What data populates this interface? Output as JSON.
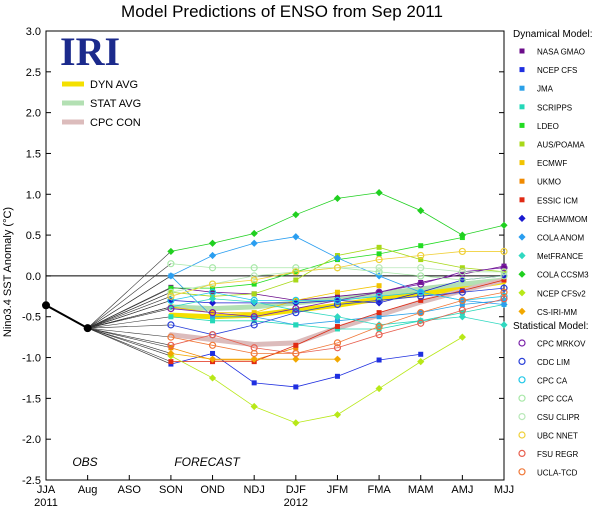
{
  "chart_data": {
    "type": "line",
    "title": "Model Predictions of ENSO from Sep 2011",
    "ylabel": "Nino3.4 SST Anomaly (°C)",
    "xlabel": "",
    "logo": "IRI",
    "categories": [
      "JJA",
      "Aug",
      "ASO",
      "SON",
      "OND",
      "NDJ",
      "DJF",
      "JFM",
      "FMA",
      "MAM",
      "AMJ",
      "MJJ"
    ],
    "year_labels": [
      {
        "at": "JJA",
        "text": "2011"
      },
      {
        "at": "DJF",
        "text": "2012"
      }
    ],
    "ylim": [
      -2.5,
      3.0
    ],
    "yticks": [
      -2.5,
      -2.0,
      -1.5,
      -1.0,
      -0.5,
      0.0,
      0.5,
      1.0,
      1.5,
      2.0,
      2.5,
      3.0
    ],
    "zero_line": true,
    "obs_label": "OBS",
    "forecast_label": "FORECAST",
    "observed": {
      "x": [
        "JJA",
        "Aug"
      ],
      "values": [
        -0.36,
        -0.64
      ],
      "color": "#000000"
    },
    "averages": [
      {
        "name": "DYN AVG",
        "color": "#f4e000",
        "values": [
          -0.48,
          -0.5,
          -0.48,
          -0.42,
          -0.36,
          -0.28,
          -0.22,
          -0.15,
          -0.07
        ]
      },
      {
        "name": "STAT AVG",
        "color": "#b3e0b3",
        "values": [
          -0.38,
          -0.4,
          -0.38,
          -0.33,
          -0.28,
          -0.22,
          -0.16,
          -0.1,
          -0.05
        ]
      },
      {
        "name": "CPC CON",
        "color": "#dcbcbc",
        "values": [
          -0.72,
          -0.78,
          -0.84,
          -0.82,
          -0.64,
          -0.48,
          -0.32,
          -0.18,
          -0.05
        ]
      }
    ],
    "legend_dynamical_title": "Dynamical Model:",
    "legend_statistical_title": "Statistical Model:",
    "dynamical_series": [
      {
        "name": "NASA GMAO",
        "color": "#6b0c8a",
        "marker": "square",
        "values": [
          -0.14,
          -0.2,
          -0.22,
          -0.3,
          -0.25,
          -0.2,
          -0.08,
          0.02,
          0.12
        ]
      },
      {
        "name": "NCEP CFS",
        "color": "#1f2fe0",
        "marker": "square",
        "values": [
          -1.08,
          -0.95,
          -1.31,
          -1.36,
          -1.23,
          -1.03,
          -0.96,
          null,
          null
        ]
      },
      {
        "name": "JMA",
        "color": "#2aa0e8",
        "marker": "square",
        "values": [
          0.0,
          -0.5,
          -0.5,
          -0.6,
          -0.55,
          -0.5,
          -0.45,
          -0.35,
          -0.3
        ]
      },
      {
        "name": "SCRIPPS",
        "color": "#24d8b8",
        "marker": "square",
        "values": [
          -0.5,
          -0.55,
          -0.55,
          -0.6,
          -0.65,
          -0.65,
          -0.55,
          -0.45,
          -0.35
        ]
      },
      {
        "name": "LDEO",
        "color": "#22dc22",
        "marker": "square",
        "values": [
          -0.15,
          -0.15,
          -0.1,
          0.05,
          0.2,
          0.27,
          0.37,
          0.47,
          null
        ]
      },
      {
        "name": "AUS/POAMA",
        "color": "#a8d818",
        "marker": "square",
        "values": [
          -0.2,
          -0.25,
          -0.22,
          -0.05,
          0.25,
          0.35,
          0.2,
          0.1,
          0.05
        ]
      },
      {
        "name": "ECMWF",
        "color": "#f2c400",
        "marker": "square",
        "values": [
          -0.38,
          -0.45,
          -0.45,
          -0.3,
          -0.2,
          -0.12,
          null,
          null,
          null
        ]
      },
      {
        "name": "UKMO",
        "color": "#f08a00",
        "marker": "square",
        "values": [
          -0.88,
          -1.03,
          -1.03,
          -0.88,
          null,
          null,
          null,
          null,
          null
        ]
      },
      {
        "name": "ESSIC ICM",
        "color": "#e02a14",
        "marker": "square",
        "values": [
          -1.05,
          -1.05,
          -1.05,
          -0.85,
          -0.62,
          -0.45,
          -0.3,
          -0.18,
          -0.05
        ]
      },
      {
        "name": "ECHAM/MOM",
        "color": "#1a1ad0",
        "marker": "diamond",
        "values": [
          -0.3,
          -0.33,
          -0.33,
          -0.33,
          -0.3,
          -0.33,
          -0.2,
          -0.05,
          0.0
        ]
      },
      {
        "name": "COLA ANOM",
        "color": "#2a9ef0",
        "marker": "diamond",
        "values": [
          0.0,
          0.25,
          0.4,
          0.48,
          0.22,
          0.0,
          -0.2,
          -0.3,
          -0.35
        ]
      },
      {
        "name": "MetFRANCE",
        "color": "#30d8c0",
        "marker": "diamond",
        "values": [
          -0.38,
          -0.28,
          -0.32,
          -0.42,
          -0.5,
          -0.6,
          -0.55,
          -0.5,
          -0.6
        ]
      },
      {
        "name": "COLA CCSM3",
        "color": "#20d020",
        "marker": "diamond",
        "values": [
          0.3,
          0.4,
          0.52,
          0.75,
          0.95,
          1.02,
          0.8,
          0.5,
          0.62
        ]
      },
      {
        "name": "NCEP CFSv2",
        "color": "#b8e818",
        "marker": "diamond",
        "values": [
          -0.98,
          -1.25,
          -1.6,
          -1.8,
          -1.7,
          -1.38,
          -1.05,
          -0.75,
          null
        ]
      },
      {
        "name": "CS-IRI-MM",
        "color": "#f2a800",
        "marker": "diamond",
        "values": [
          -0.95,
          -1.02,
          -1.02,
          -1.02,
          -1.02,
          null,
          null,
          null,
          null
        ]
      }
    ],
    "statistical_series": [
      {
        "name": "CPC MRKOV",
        "color": "#7a22a8",
        "marker": "circle",
        "values": [
          -0.4,
          -0.45,
          -0.5,
          -0.4,
          -0.3,
          -0.2,
          -0.1,
          0.05,
          0.1
        ]
      },
      {
        "name": "CDC LIM",
        "color": "#2a40d8",
        "marker": "circle",
        "values": [
          -0.6,
          -0.72,
          -0.6,
          -0.45,
          -0.35,
          -0.3,
          -0.25,
          -0.2,
          -0.15
        ]
      },
      {
        "name": "CPC CA",
        "color": "#22c8e8",
        "marker": "circle",
        "values": [
          -0.3,
          -0.2,
          -0.3,
          -0.3,
          -0.3,
          -0.25,
          -0.2,
          -0.3,
          -0.25
        ]
      },
      {
        "name": "CPC CCA",
        "color": "#a8e8a8",
        "marker": "circle",
        "values": [
          0.15,
          0.1,
          0.1,
          0.1,
          0.1,
          0.05,
          0.0,
          -0.05,
          0.0
        ]
      },
      {
        "name": "CSU CLIPR",
        "color": "#b8e8b8",
        "marker": "circle",
        "values": [
          -0.2,
          -0.1,
          0.0,
          0.05,
          0.1,
          0.1,
          0.1,
          0.05,
          0.05
        ]
      },
      {
        "name": "UBC NNET",
        "color": "#f0d038",
        "marker": "circle",
        "values": [
          -0.25,
          -0.1,
          -0.05,
          0.05,
          0.1,
          0.2,
          0.25,
          0.3,
          0.3
        ]
      },
      {
        "name": "FSU REGR",
        "color": "#e86050",
        "marker": "circle",
        "values": [
          -0.85,
          -0.72,
          -0.88,
          -0.95,
          -0.88,
          -0.72,
          -0.58,
          -0.42,
          -0.28
        ]
      },
      {
        "name": "UCLA-TCD",
        "color": "#f07838",
        "marker": "circle",
        "values": [
          -0.75,
          -0.85,
          -0.95,
          -0.95,
          -0.82,
          -0.62,
          -0.45,
          -0.3,
          -0.2
        ]
      }
    ]
  }
}
